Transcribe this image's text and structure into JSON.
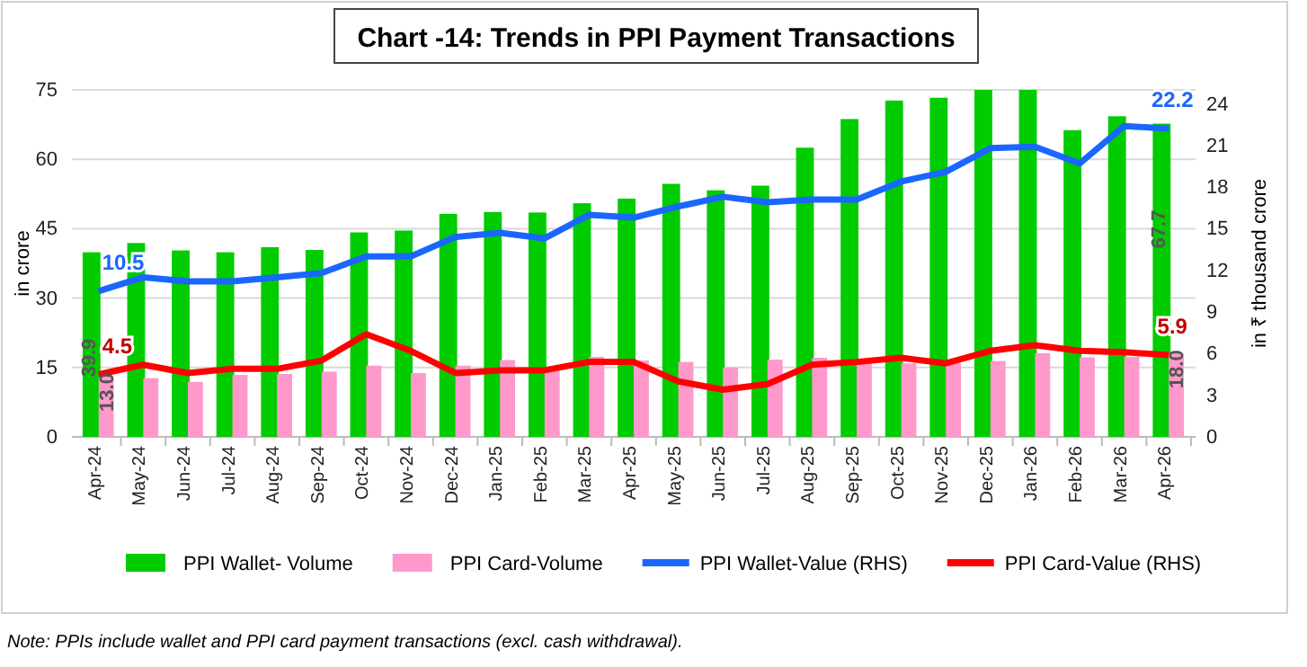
{
  "chart_data": {
    "type": "bar",
    "title": "Chart -14: Trends in PPI Payment Transactions",
    "categories": [
      "Apr-24",
      "May-24",
      "Jun-24",
      "Jul-24",
      "Aug-24",
      "Sep-24",
      "Oct-24",
      "Nov-24",
      "Dec-24",
      "Jan-25",
      "Feb-25",
      "Mar-25",
      "Apr-25",
      "May-25",
      "Jun-25",
      "Jul-25",
      "Aug-25",
      "Sep-25",
      "Oct-25",
      "Nov-25",
      "Dec-25",
      "Jan-26",
      "Feb-26",
      "Mar-26",
      "Apr-26"
    ],
    "series": [
      {
        "name": "PPI Wallet- Volume",
        "color": "#00cc00",
        "values": [
          39.9,
          41.9,
          40.3,
          39.9,
          41.0,
          40.4,
          44.2,
          44.6,
          48.2,
          48.6,
          48.5,
          50.5,
          51.5,
          54.7,
          53.3,
          54.3,
          62.5,
          68.7,
          72.7,
          73.3,
          75.0,
          75.0,
          66.3,
          69.3,
          67.7
        ],
        "value_labels": [
          "39.9",
          null,
          null,
          null,
          null,
          null,
          null,
          null,
          null,
          null,
          null,
          null,
          null,
          null,
          null,
          null,
          null,
          null,
          null,
          null,
          null,
          null,
          null,
          null,
          "67.7"
        ]
      },
      {
        "name": "PPI Card-Volume",
        "color": "#ff99cc",
        "values": [
          13.0,
          12.7,
          11.9,
          13.4,
          13.6,
          14.1,
          15.4,
          13.8,
          15.4,
          16.6,
          15.0,
          17.3,
          16.5,
          16.2,
          15.0,
          16.7,
          17.1,
          16.3,
          15.9,
          15.9,
          16.4,
          18.1,
          17.2,
          17.3,
          18.0
        ],
        "value_labels": [
          "13.0",
          null,
          null,
          null,
          null,
          null,
          null,
          null,
          null,
          null,
          null,
          null,
          null,
          null,
          null,
          null,
          null,
          null,
          null,
          null,
          null,
          null,
          null,
          null,
          "18.0"
        ]
      },
      {
        "name": "PPI Wallet-Value (RHS)",
        "type": "line",
        "axis": "y2",
        "color": "#1a66ff",
        "values": [
          10.5,
          11.5,
          11.2,
          11.2,
          11.5,
          11.8,
          13.0,
          13.0,
          14.4,
          14.7,
          14.3,
          16.0,
          15.8,
          16.6,
          17.3,
          16.9,
          17.1,
          17.1,
          18.4,
          19.1,
          20.8,
          20.9,
          19.7,
          22.4,
          22.2
        ],
        "value_labels": [
          "10.5",
          null,
          null,
          null,
          null,
          null,
          null,
          null,
          null,
          null,
          null,
          null,
          null,
          null,
          null,
          null,
          null,
          null,
          null,
          null,
          null,
          null,
          null,
          null,
          "22.2"
        ]
      },
      {
        "name": "PPI Card-Value (RHS)",
        "type": "line",
        "axis": "y2",
        "color": "#ff0000",
        "values": [
          4.5,
          5.2,
          4.6,
          4.9,
          4.9,
          5.5,
          7.4,
          6.2,
          4.6,
          4.8,
          4.8,
          5.4,
          5.4,
          4.0,
          3.4,
          3.8,
          5.2,
          5.4,
          5.7,
          5.3,
          6.2,
          6.6,
          6.2,
          6.1,
          5.9
        ],
        "value_labels": [
          "4.5",
          null,
          null,
          null,
          null,
          null,
          null,
          null,
          null,
          null,
          null,
          null,
          null,
          null,
          null,
          null,
          null,
          null,
          null,
          null,
          null,
          null,
          null,
          null,
          "5.9"
        ]
      }
    ],
    "ylabel": "in crore",
    "y2label": "in ₹ thousand crore",
    "ylim": [
      0,
      75
    ],
    "yticks": [
      0,
      15,
      30,
      45,
      60,
      75
    ],
    "y2lim": [
      0,
      25
    ],
    "y2ticks": [
      0,
      3,
      6,
      9,
      12,
      15,
      18,
      21,
      24
    ],
    "grid": "y",
    "legend": "bottom",
    "annotations": [
      "Note: PPIs include wallet and PPI card payment transactions (excl. cash withdrawal)."
    ]
  }
}
